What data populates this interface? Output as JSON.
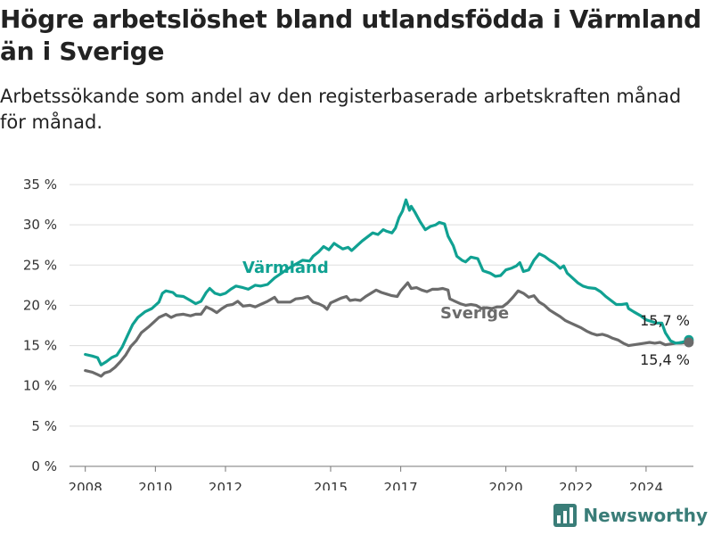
{
  "header": {
    "title": "Högre arbetslöshet bland utlandsfödda i Värmland än i Sverige",
    "subtitle": "Arbetssökande som andel av den registerbaserade arbetskraften månad för månad."
  },
  "brand": {
    "name": "Newsworthy",
    "logo_icon": "bar-chart-icon",
    "color": "#3a7d78"
  },
  "chart_data": {
    "type": "line",
    "ylim": [
      0,
      35
    ],
    "yticks": [
      0,
      5,
      10,
      15,
      20,
      25,
      30,
      35
    ],
    "ytick_labels": [
      "0 %",
      "5 %",
      "10 %",
      "15 %",
      "20 %",
      "25 %",
      "30 %",
      "35 %"
    ],
    "xlim": [
      2007.55,
      2025.35
    ],
    "xticks": [
      2008,
      2010,
      2012,
      2015,
      2017,
      2020,
      2022,
      2024
    ],
    "xtick_labels": [
      "2008",
      "2010",
      "2012",
      "2015",
      "2017",
      "2020",
      "2022",
      "2024"
    ],
    "grid": true,
    "series": [
      {
        "name": "Värmland",
        "color": "#10a192",
        "end_label": "15,7 %",
        "points": [
          [
            2008.0,
            13.9
          ],
          [
            2008.2,
            13.7
          ],
          [
            2008.35,
            13.5
          ],
          [
            2008.45,
            12.6
          ],
          [
            2008.6,
            13.0
          ],
          [
            2008.75,
            13.5
          ],
          [
            2008.9,
            13.8
          ],
          [
            2009.05,
            14.8
          ],
          [
            2009.2,
            16.2
          ],
          [
            2009.35,
            17.6
          ],
          [
            2009.5,
            18.5
          ],
          [
            2009.7,
            19.2
          ],
          [
            2009.9,
            19.6
          ],
          [
            2010.1,
            20.4
          ],
          [
            2010.2,
            21.5
          ],
          [
            2010.3,
            21.8
          ],
          [
            2010.5,
            21.6
          ],
          [
            2010.6,
            21.2
          ],
          [
            2010.8,
            21.1
          ],
          [
            2011.0,
            20.6
          ],
          [
            2011.15,
            20.2
          ],
          [
            2011.3,
            20.5
          ],
          [
            2011.45,
            21.6
          ],
          [
            2011.55,
            22.1
          ],
          [
            2011.7,
            21.5
          ],
          [
            2011.85,
            21.3
          ],
          [
            2012.0,
            21.5
          ],
          [
            2012.15,
            22.0
          ],
          [
            2012.3,
            22.4
          ],
          [
            2012.5,
            22.2
          ],
          [
            2012.65,
            22.0
          ],
          [
            2012.85,
            22.5
          ],
          [
            2013.0,
            22.4
          ],
          [
            2013.2,
            22.6
          ],
          [
            2013.4,
            23.4
          ],
          [
            2013.6,
            24.0
          ],
          [
            2013.8,
            24.6
          ],
          [
            2014.0,
            25.1
          ],
          [
            2014.2,
            25.6
          ],
          [
            2014.4,
            25.5
          ],
          [
            2014.5,
            26.1
          ],
          [
            2014.65,
            26.6
          ],
          [
            2014.8,
            27.3
          ],
          [
            2014.95,
            26.9
          ],
          [
            2015.1,
            27.7
          ],
          [
            2015.2,
            27.4
          ],
          [
            2015.35,
            27.0
          ],
          [
            2015.5,
            27.2
          ],
          [
            2015.6,
            26.8
          ],
          [
            2015.75,
            27.4
          ],
          [
            2015.9,
            28.0
          ],
          [
            2016.05,
            28.5
          ],
          [
            2016.2,
            29.0
          ],
          [
            2016.35,
            28.8
          ],
          [
            2016.5,
            29.4
          ],
          [
            2016.6,
            29.2
          ],
          [
            2016.75,
            29.0
          ],
          [
            2016.85,
            29.6
          ],
          [
            2016.95,
            30.9
          ],
          [
            2017.05,
            31.7
          ],
          [
            2017.15,
            33.1
          ],
          [
            2017.25,
            31.8
          ],
          [
            2017.3,
            32.3
          ],
          [
            2017.4,
            31.6
          ],
          [
            2017.55,
            30.4
          ],
          [
            2017.7,
            29.4
          ],
          [
            2017.85,
            29.8
          ],
          [
            2018.0,
            30.0
          ],
          [
            2018.1,
            30.3
          ],
          [
            2018.25,
            30.1
          ],
          [
            2018.35,
            28.6
          ],
          [
            2018.5,
            27.4
          ],
          [
            2018.6,
            26.1
          ],
          [
            2018.75,
            25.6
          ],
          [
            2018.85,
            25.4
          ],
          [
            2019.0,
            26.0
          ],
          [
            2019.2,
            25.8
          ],
          [
            2019.35,
            24.3
          ],
          [
            2019.55,
            24.0
          ],
          [
            2019.7,
            23.6
          ],
          [
            2019.85,
            23.7
          ],
          [
            2020.0,
            24.4
          ],
          [
            2020.15,
            24.6
          ],
          [
            2020.3,
            24.9
          ],
          [
            2020.4,
            25.3
          ],
          [
            2020.5,
            24.2
          ],
          [
            2020.65,
            24.4
          ],
          [
            2020.8,
            25.6
          ],
          [
            2020.95,
            26.4
          ],
          [
            2021.1,
            26.1
          ],
          [
            2021.25,
            25.6
          ],
          [
            2021.4,
            25.2
          ],
          [
            2021.55,
            24.6
          ],
          [
            2021.65,
            24.9
          ],
          [
            2021.75,
            24.0
          ],
          [
            2021.9,
            23.4
          ],
          [
            2022.05,
            22.8
          ],
          [
            2022.2,
            22.4
          ],
          [
            2022.35,
            22.2
          ],
          [
            2022.55,
            22.1
          ],
          [
            2022.7,
            21.7
          ],
          [
            2022.85,
            21.1
          ],
          [
            2023.0,
            20.6
          ],
          [
            2023.15,
            20.1
          ],
          [
            2023.3,
            20.1
          ],
          [
            2023.45,
            20.2
          ],
          [
            2023.5,
            19.6
          ],
          [
            2023.65,
            19.2
          ],
          [
            2023.85,
            18.7
          ],
          [
            2024.0,
            18.2
          ],
          [
            2024.15,
            18.0
          ],
          [
            2024.3,
            17.8
          ],
          [
            2024.45,
            17.8
          ],
          [
            2024.55,
            16.6
          ],
          [
            2024.7,
            15.6
          ],
          [
            2024.85,
            15.3
          ],
          [
            2025.0,
            15.4
          ],
          [
            2025.1,
            15.5
          ],
          [
            2025.22,
            15.7
          ]
        ]
      },
      {
        "name": "Sverige",
        "color": "#6b6b6b",
        "end_label": "15,4 %",
        "points": [
          [
            2008.0,
            11.9
          ],
          [
            2008.2,
            11.7
          ],
          [
            2008.35,
            11.4
          ],
          [
            2008.45,
            11.2
          ],
          [
            2008.55,
            11.6
          ],
          [
            2008.7,
            11.8
          ],
          [
            2008.85,
            12.3
          ],
          [
            2009.0,
            13.0
          ],
          [
            2009.15,
            13.8
          ],
          [
            2009.3,
            14.9
          ],
          [
            2009.45,
            15.6
          ],
          [
            2009.6,
            16.6
          ],
          [
            2009.8,
            17.3
          ],
          [
            2009.95,
            17.9
          ],
          [
            2010.1,
            18.5
          ],
          [
            2010.3,
            18.9
          ],
          [
            2010.45,
            18.5
          ],
          [
            2010.6,
            18.8
          ],
          [
            2010.8,
            18.9
          ],
          [
            2011.0,
            18.7
          ],
          [
            2011.15,
            18.9
          ],
          [
            2011.3,
            18.9
          ],
          [
            2011.45,
            19.8
          ],
          [
            2011.6,
            19.5
          ],
          [
            2011.75,
            19.1
          ],
          [
            2011.9,
            19.6
          ],
          [
            2012.05,
            20.0
          ],
          [
            2012.2,
            20.1
          ],
          [
            2012.35,
            20.5
          ],
          [
            2012.5,
            19.9
          ],
          [
            2012.7,
            20.0
          ],
          [
            2012.85,
            19.8
          ],
          [
            2013.0,
            20.1
          ],
          [
            2013.2,
            20.5
          ],
          [
            2013.4,
            21.0
          ],
          [
            2013.5,
            20.4
          ],
          [
            2013.7,
            20.4
          ],
          [
            2013.85,
            20.4
          ],
          [
            2014.0,
            20.8
          ],
          [
            2014.2,
            20.9
          ],
          [
            2014.35,
            21.1
          ],
          [
            2014.5,
            20.4
          ],
          [
            2014.65,
            20.2
          ],
          [
            2014.8,
            19.9
          ],
          [
            2014.9,
            19.5
          ],
          [
            2015.0,
            20.3
          ],
          [
            2015.15,
            20.6
          ],
          [
            2015.3,
            20.9
          ],
          [
            2015.45,
            21.1
          ],
          [
            2015.55,
            20.6
          ],
          [
            2015.7,
            20.7
          ],
          [
            2015.85,
            20.6
          ],
          [
            2016.0,
            21.1
          ],
          [
            2016.15,
            21.5
          ],
          [
            2016.3,
            21.9
          ],
          [
            2016.45,
            21.6
          ],
          [
            2016.6,
            21.4
          ],
          [
            2016.75,
            21.2
          ],
          [
            2016.9,
            21.1
          ],
          [
            2017.0,
            21.8
          ],
          [
            2017.1,
            22.3
          ],
          [
            2017.2,
            22.8
          ],
          [
            2017.3,
            22.1
          ],
          [
            2017.45,
            22.2
          ],
          [
            2017.6,
            21.9
          ],
          [
            2017.75,
            21.7
          ],
          [
            2017.9,
            22.0
          ],
          [
            2018.05,
            22.0
          ],
          [
            2018.2,
            22.1
          ],
          [
            2018.35,
            21.9
          ],
          [
            2018.4,
            20.8
          ],
          [
            2018.55,
            20.5
          ],
          [
            2018.7,
            20.2
          ],
          [
            2018.85,
            20.0
          ],
          [
            2019.0,
            20.1
          ],
          [
            2019.15,
            20.0
          ],
          [
            2019.3,
            19.6
          ],
          [
            2019.45,
            19.7
          ],
          [
            2019.6,
            19.6
          ],
          [
            2019.75,
            19.8
          ],
          [
            2019.9,
            19.8
          ],
          [
            2020.05,
            20.3
          ],
          [
            2020.2,
            21.0
          ],
          [
            2020.35,
            21.8
          ],
          [
            2020.5,
            21.5
          ],
          [
            2020.65,
            21.0
          ],
          [
            2020.8,
            21.2
          ],
          [
            2020.95,
            20.4
          ],
          [
            2021.1,
            20.0
          ],
          [
            2021.25,
            19.4
          ],
          [
            2021.4,
            19.0
          ],
          [
            2021.55,
            18.6
          ],
          [
            2021.7,
            18.1
          ],
          [
            2021.85,
            17.8
          ],
          [
            2022.0,
            17.5
          ],
          [
            2022.15,
            17.2
          ],
          [
            2022.3,
            16.8
          ],
          [
            2022.45,
            16.5
          ],
          [
            2022.6,
            16.3
          ],
          [
            2022.75,
            16.4
          ],
          [
            2022.9,
            16.2
          ],
          [
            2023.05,
            15.9
          ],
          [
            2023.2,
            15.7
          ],
          [
            2023.35,
            15.3
          ],
          [
            2023.5,
            15.0
          ],
          [
            2023.65,
            15.1
          ],
          [
            2023.8,
            15.2
          ],
          [
            2023.95,
            15.3
          ],
          [
            2024.1,
            15.4
          ],
          [
            2024.25,
            15.3
          ],
          [
            2024.4,
            15.4
          ],
          [
            2024.55,
            15.1
          ],
          [
            2024.7,
            15.2
          ],
          [
            2024.85,
            15.3
          ],
          [
            2025.0,
            15.3
          ],
          [
            2025.22,
            15.4
          ]
        ]
      }
    ]
  }
}
